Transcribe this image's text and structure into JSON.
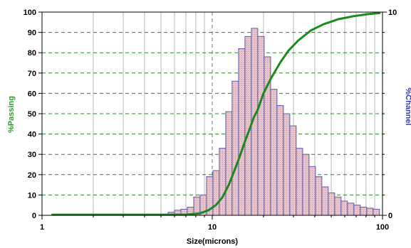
{
  "chart_data": {
    "type": "bar",
    "xlabel": "Size(microns)",
    "ylabel_left": "%Passing",
    "ylabel_right": "%Channel",
    "x_scale": "log",
    "xlim": [
      1,
      100
    ],
    "ylim_left": [
      0,
      100
    ],
    "ylim_right": [
      0,
      10
    ],
    "x_ticks": [
      "1",
      "10",
      "100"
    ],
    "y_ticks_left": [
      "0",
      "10",
      "20",
      "30",
      "40",
      "50",
      "60",
      "70",
      "80",
      "90",
      "100"
    ],
    "y_ticks_right": [
      "0",
      "10"
    ],
    "grid": {
      "horizontal": "dashed green",
      "vertical": "solid grey",
      "reference_line_x": 10
    },
    "colors": {
      "passing_line": "#1a8a1a",
      "passing_axis_title": "#2e9a2e",
      "channel_axis_title": "#3a3ab0",
      "bar_fill": "#e8c4cc",
      "bar_edge": "#5a5aa8",
      "h_grid": "#228822",
      "v_grid": "#b8b8b8"
    },
    "series": [
      {
        "kind": "bar",
        "axis": "right",
        "bins": [
          {
            "left": 5.5,
            "right": 6.0,
            "value": 0.15
          },
          {
            "left": 6.0,
            "right": 6.54,
            "value": 0.25
          },
          {
            "left": 6.54,
            "right": 7.13,
            "value": 0.3
          },
          {
            "left": 7.13,
            "right": 7.78,
            "value": 0.4
          },
          {
            "left": 7.78,
            "right": 8.48,
            "value": 0.9
          },
          {
            "left": 8.48,
            "right": 9.25,
            "value": 1.0
          },
          {
            "left": 9.25,
            "right": 10.09,
            "value": 1.9
          },
          {
            "left": 10.09,
            "right": 11.0,
            "value": 2.2
          },
          {
            "left": 11.0,
            "right": 12.0,
            "value": 3.3
          },
          {
            "left": 12.0,
            "right": 13.08,
            "value": 5.1
          },
          {
            "left": 13.08,
            "right": 14.27,
            "value": 6.6
          },
          {
            "left": 14.27,
            "right": 15.56,
            "value": 8.2
          },
          {
            "left": 15.56,
            "right": 16.97,
            "value": 8.8
          },
          {
            "left": 16.97,
            "right": 18.5,
            "value": 9.2
          },
          {
            "left": 18.5,
            "right": 20.18,
            "value": 8.8
          },
          {
            "left": 20.18,
            "right": 22.01,
            "value": 7.8
          },
          {
            "left": 22.01,
            "right": 24.0,
            "value": 6.2
          },
          {
            "left": 24.0,
            "right": 26.17,
            "value": 5.4
          },
          {
            "left": 26.17,
            "right": 28.54,
            "value": 5.0
          },
          {
            "left": 28.54,
            "right": 31.13,
            "value": 4.4
          },
          {
            "left": 31.13,
            "right": 33.95,
            "value": 3.3
          },
          {
            "left": 33.95,
            "right": 37.02,
            "value": 3.0
          },
          {
            "left": 37.02,
            "right": 40.38,
            "value": 2.4
          },
          {
            "left": 40.38,
            "right": 44.03,
            "value": 1.9
          },
          {
            "left": 44.03,
            "right": 48.02,
            "value": 1.4
          },
          {
            "left": 48.02,
            "right": 52.37,
            "value": 1.1
          },
          {
            "left": 52.37,
            "right": 57.11,
            "value": 0.9
          },
          {
            "left": 57.11,
            "right": 62.28,
            "value": 0.7
          },
          {
            "left": 62.28,
            "right": 67.92,
            "value": 0.6
          },
          {
            "left": 67.92,
            "right": 74.07,
            "value": 0.5
          },
          {
            "left": 74.07,
            "right": 80.78,
            "value": 0.4
          },
          {
            "left": 80.78,
            "right": 88.1,
            "value": 0.35
          },
          {
            "left": 88.1,
            "right": 96.0,
            "value": 0.3
          }
        ]
      },
      {
        "kind": "line",
        "axis": "left",
        "points": [
          {
            "x": 1.15,
            "y": 0.3
          },
          {
            "x": 5.0,
            "y": 0.3
          },
          {
            "x": 7.0,
            "y": 0.3
          },
          {
            "x": 8.5,
            "y": 1.0
          },
          {
            "x": 9.5,
            "y": 2.5
          },
          {
            "x": 10.5,
            "y": 5.0
          },
          {
            "x": 11.5,
            "y": 9.0
          },
          {
            "x": 12.5,
            "y": 15.0
          },
          {
            "x": 13.5,
            "y": 22.0
          },
          {
            "x": 14.5,
            "y": 29.0
          },
          {
            "x": 15.5,
            "y": 36.0
          },
          {
            "x": 16.5,
            "y": 42.0
          },
          {
            "x": 17.5,
            "y": 48.0
          },
          {
            "x": 18.5,
            "y": 52.0
          },
          {
            "x": 20.0,
            "y": 60.0
          },
          {
            "x": 22.0,
            "y": 67.0
          },
          {
            "x": 25.0,
            "y": 75.0
          },
          {
            "x": 28.0,
            "y": 81.0
          },
          {
            "x": 32.0,
            "y": 86.0
          },
          {
            "x": 38.0,
            "y": 91.0
          },
          {
            "x": 45.0,
            "y": 94.0
          },
          {
            "x": 55.0,
            "y": 96.5
          },
          {
            "x": 68.0,
            "y": 98.0
          },
          {
            "x": 82.0,
            "y": 99.0
          },
          {
            "x": 96.0,
            "y": 99.5
          }
        ]
      }
    ]
  }
}
